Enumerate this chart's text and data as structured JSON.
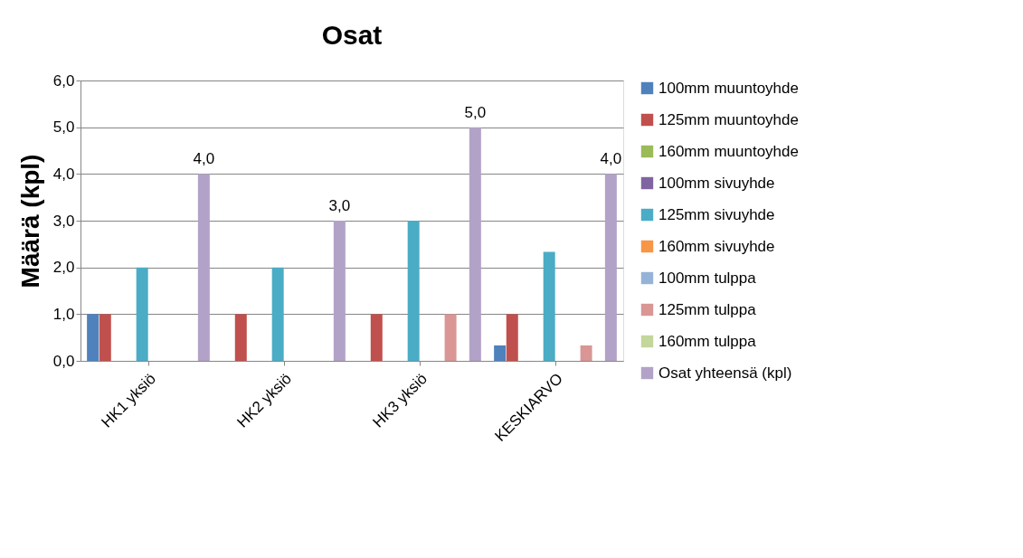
{
  "chart_data": {
    "type": "bar",
    "title": "Osat",
    "ylabel": "Määrä (kpl)",
    "categories": [
      "HK1 yksiö",
      "HK2 yksiö",
      "HK3 yksiö",
      "KESKIARVO"
    ],
    "series": [
      {
        "name": "100mm muuntoyhde",
        "color": "#4f81bd",
        "values": [
          1,
          0,
          0,
          0.33
        ]
      },
      {
        "name": "125mm muuntoyhde",
        "color": "#c0504d",
        "values": [
          1,
          1,
          1,
          1
        ]
      },
      {
        "name": "160mm muuntoyhde",
        "color": "#9bbb59",
        "values": [
          0,
          0,
          0,
          0
        ]
      },
      {
        "name": "100mm sivuyhde",
        "color": "#8064a2",
        "values": [
          0,
          0,
          0,
          0
        ]
      },
      {
        "name": "125mm sivuyhde",
        "color": "#4bacc6",
        "values": [
          2,
          2,
          3,
          2.33
        ]
      },
      {
        "name": "160mm sivuyhde",
        "color": "#f79646",
        "values": [
          0,
          0,
          0,
          0
        ]
      },
      {
        "name": "100mm tulppa",
        "color": "#95b3d7",
        "values": [
          0,
          0,
          0,
          0
        ]
      },
      {
        "name": "125mm tulppa",
        "color": "#d99694",
        "values": [
          0,
          0,
          1,
          0.33
        ]
      },
      {
        "name": "160mm tulppa",
        "color": "#c3d69b",
        "values": [
          0,
          0,
          0,
          0
        ]
      },
      {
        "name": "Osat yhteensä (kpl)",
        "color": "#b3a2c7",
        "values": [
          4,
          3,
          5,
          4
        ],
        "value_labels": [
          "4,0",
          "3,0",
          "5,0",
          "4,0"
        ]
      }
    ],
    "ylim": [
      0,
      6
    ],
    "yticks": [
      {
        "value": 0,
        "label": "0,0"
      },
      {
        "value": 1,
        "label": "1,0"
      },
      {
        "value": 2,
        "label": "2,0"
      },
      {
        "value": 3,
        "label": "3,0"
      },
      {
        "value": 4,
        "label": "4,0"
      },
      {
        "value": 5,
        "label": "5,0"
      },
      {
        "value": 6,
        "label": "6,0"
      }
    ],
    "grid": "y",
    "legend": "right"
  }
}
